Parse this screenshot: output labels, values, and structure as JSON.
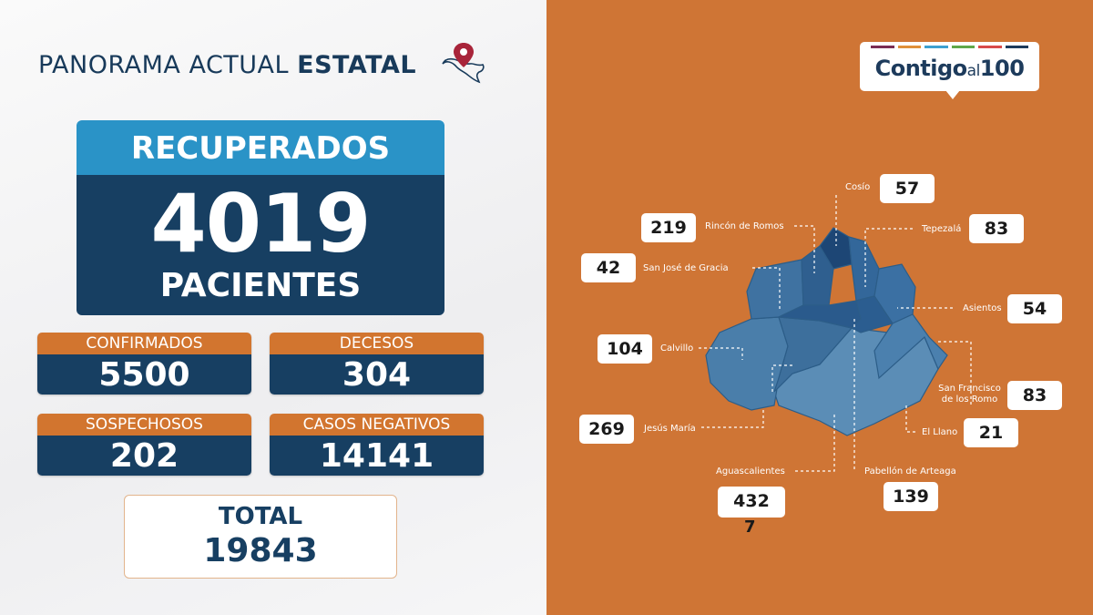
{
  "header": {
    "title_light": "PANORAMA ACTUAL ",
    "title_bold": "ESTATAL",
    "icon": "mexico-map-pin-icon"
  },
  "recovered": {
    "label": "RECUPERADOS",
    "value": "4019",
    "unit": "PACIENTES"
  },
  "stats": {
    "confirmed": {
      "label": "CONFIRMADOS",
      "value": "5500"
    },
    "deaths": {
      "label": "DECESOS",
      "value": "304"
    },
    "suspected": {
      "label": "SOSPECHOSOS",
      "value": "202"
    },
    "negative": {
      "label": "CASOS NEGATIVOS",
      "value": "14141"
    }
  },
  "total": {
    "label": "TOTAL",
    "value": "19843"
  },
  "brand": {
    "text_main": "Contigo",
    "text_small": "al",
    "text_num": "100",
    "stripe_colors": [
      "#7a2d55",
      "#e0903a",
      "#3da0d0",
      "#5fa84a",
      "#d84a4a",
      "#1d3b5c"
    ]
  },
  "municipalities": [
    {
      "name": "Cosío",
      "value": "57"
    },
    {
      "name": "Rincón de Romos",
      "value": "219"
    },
    {
      "name": "Tepezalá",
      "value": "83"
    },
    {
      "name": "San José de Gracia",
      "value": "42"
    },
    {
      "name": "Asientos",
      "value": "54"
    },
    {
      "name": "Calvillo",
      "value": "104"
    },
    {
      "name": "San Francisco de los Romo",
      "value": "83"
    },
    {
      "name": "Jesús María",
      "value": "269"
    },
    {
      "name": "El Llano",
      "value": "21"
    },
    {
      "name": "Aguascalientes",
      "value": "432",
      "extra": "7"
    },
    {
      "name": "Pabellón de Arteaga",
      "value": "139"
    }
  ],
  "colors": {
    "navy": "#173f62",
    "blue": "#2a93c7",
    "orange": "#d2752f",
    "background_orange": "#cf7535"
  }
}
